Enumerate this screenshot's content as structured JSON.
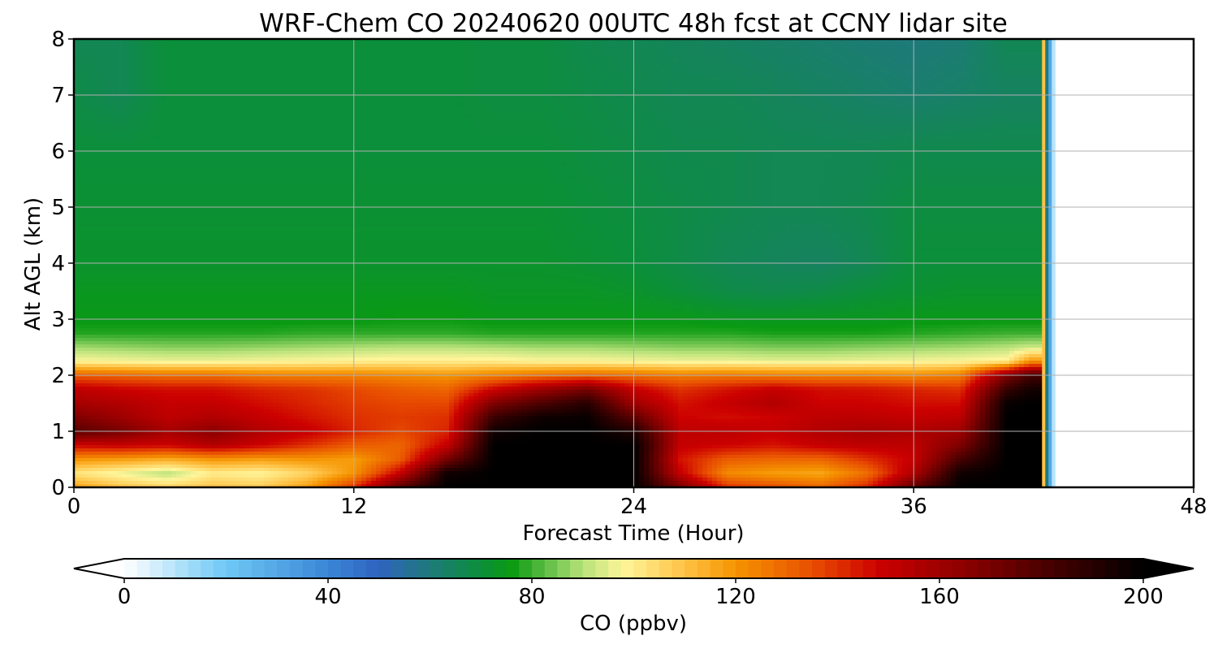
{
  "chart_data": {
    "type": "heatmap",
    "title": "WRF-Chem CO  20240620 00UTC 48h fcst at CCNY lidar site",
    "xlabel": "Forecast Time (Hour)",
    "ylabel": "Alt AGL (km)",
    "xlim": [
      0,
      48
    ],
    "ylim": [
      0,
      8
    ],
    "xticks": [
      0,
      12,
      24,
      36,
      48
    ],
    "yticks": [
      0,
      1,
      2,
      3,
      4,
      5,
      6,
      7,
      8
    ],
    "grid": true,
    "colorbar": {
      "label": "CO  (ppbv)",
      "range": [
        0,
        200
      ],
      "ticks": [
        0,
        40,
        80,
        120,
        160,
        200
      ],
      "extend": "both",
      "stops": [
        {
          "value": 0,
          "color": "#ffffff"
        },
        {
          "value": 20,
          "color": "#6ec8f5"
        },
        {
          "value": 40,
          "color": "#3a86d6"
        },
        {
          "value": 50,
          "color": "#2f63c0"
        },
        {
          "value": 60,
          "color": "#1e7a7a"
        },
        {
          "value": 70,
          "color": "#0b8f3a"
        },
        {
          "value": 76,
          "color": "#0a9a12"
        },
        {
          "value": 90,
          "color": "#b8e27a"
        },
        {
          "value": 98,
          "color": "#fff59a"
        },
        {
          "value": 110,
          "color": "#ffc246"
        },
        {
          "value": 120,
          "color": "#f59400"
        },
        {
          "value": 135,
          "color": "#e84e00"
        },
        {
          "value": 148,
          "color": "#cc0000"
        },
        {
          "value": 165,
          "color": "#8b0000"
        },
        {
          "value": 185,
          "color": "#3a0000"
        },
        {
          "value": 200,
          "color": "#000000"
        }
      ]
    },
    "data_end_hour": 41.5,
    "time_hours": [
      0,
      2,
      4,
      6,
      8,
      10,
      12,
      14,
      16,
      18,
      20,
      22,
      24,
      26,
      28,
      30,
      32,
      34,
      36,
      38,
      40,
      41
    ],
    "altitudes_km": [
      0,
      0.25,
      0.5,
      0.75,
      1,
      1.25,
      1.5,
      1.75,
      2,
      2.25,
      2.5,
      2.75,
      3,
      3.5,
      4,
      5,
      6,
      7,
      8
    ],
    "co_ppbv_columns": [
      [
        118,
        102,
        120,
        148,
        178,
        168,
        158,
        152,
        132,
        98,
        88,
        78,
        75,
        74,
        72,
        71,
        70,
        68,
        66
      ],
      [
        110,
        96,
        118,
        150,
        170,
        160,
        155,
        148,
        130,
        97,
        87,
        78,
        75,
        74,
        72,
        71,
        70,
        66,
        66
      ],
      [
        106,
        90,
        115,
        148,
        158,
        152,
        150,
        146,
        128,
        96,
        86,
        78,
        75,
        74,
        72,
        71,
        70,
        70,
        70
      ],
      [
        110,
        100,
        120,
        155,
        165,
        155,
        150,
        146,
        128,
        96,
        86,
        78,
        75,
        74,
        72,
        71,
        70,
        70,
        70
      ],
      [
        108,
        98,
        118,
        148,
        155,
        150,
        146,
        142,
        125,
        97,
        87,
        78,
        75,
        74,
        72,
        71,
        70,
        70,
        70
      ],
      [
        118,
        106,
        120,
        140,
        150,
        145,
        142,
        140,
        124,
        98,
        88,
        79,
        75,
        74,
        72,
        71,
        70,
        70,
        70
      ],
      [
        140,
        120,
        118,
        132,
        142,
        140,
        138,
        136,
        124,
        99,
        89,
        79,
        75,
        74,
        72,
        71,
        70,
        70,
        70
      ],
      [
        178,
        150,
        132,
        130,
        136,
        138,
        136,
        132,
        122,
        100,
        90,
        79,
        76,
        74,
        72,
        71,
        70,
        70,
        70
      ],
      [
        200,
        196,
        170,
        150,
        142,
        140,
        136,
        130,
        120,
        100,
        90,
        79,
        76,
        74,
        72,
        71,
        70,
        70,
        70
      ],
      [
        200,
        200,
        200,
        200,
        196,
        185,
        168,
        148,
        124,
        100,
        89,
        78,
        75,
        73,
        72,
        71,
        70,
        69,
        69
      ],
      [
        200,
        200,
        200,
        200,
        200,
        196,
        180,
        160,
        128,
        98,
        88,
        78,
        75,
        73,
        72,
        71,
        70,
        69,
        69
      ],
      [
        200,
        200,
        200,
        200,
        200,
        198,
        190,
        170,
        130,
        98,
        88,
        78,
        75,
        73,
        71,
        70,
        69,
        68,
        67
      ],
      [
        200,
        200,
        200,
        200,
        192,
        176,
        160,
        150,
        128,
        97,
        87,
        78,
        75,
        72,
        70,
        69,
        68,
        67,
        66
      ],
      [
        170,
        150,
        145,
        150,
        152,
        148,
        145,
        140,
        125,
        96,
        86,
        78,
        75,
        70,
        68,
        68,
        67,
        66,
        65
      ],
      [
        140,
        122,
        132,
        148,
        152,
        146,
        150,
        145,
        126,
        96,
        86,
        78,
        74,
        68,
        66,
        67,
        67,
        66,
        64
      ],
      [
        135,
        118,
        130,
        145,
        150,
        148,
        155,
        150,
        125,
        95,
        85,
        77,
        74,
        67,
        65,
        66,
        66,
        65,
        63
      ],
      [
        130,
        116,
        130,
        150,
        155,
        152,
        148,
        146,
        124,
        95,
        85,
        77,
        74,
        68,
        64,
        66,
        66,
        64,
        62
      ],
      [
        142,
        128,
        140,
        152,
        158,
        152,
        148,
        145,
        124,
        96,
        86,
        77,
        74,
        70,
        66,
        67,
        66,
        63,
        61
      ],
      [
        176,
        156,
        150,
        152,
        156,
        150,
        146,
        142,
        122,
        97,
        87,
        78,
        75,
        71,
        70,
        69,
        67,
        62,
        60
      ],
      [
        200,
        196,
        182,
        168,
        160,
        152,
        146,
        140,
        125,
        98,
        88,
        79,
        75,
        72,
        70,
        69,
        67,
        63,
        61
      ],
      [
        200,
        200,
        200,
        200,
        200,
        200,
        198,
        186,
        168,
        100,
        90,
        80,
        75,
        72,
        70,
        69,
        67,
        64,
        66
      ],
      [
        200,
        200,
        200,
        200,
        200,
        200,
        200,
        195,
        182,
        120,
        92,
        80,
        75,
        72,
        70,
        69,
        67,
        64,
        66
      ]
    ]
  }
}
